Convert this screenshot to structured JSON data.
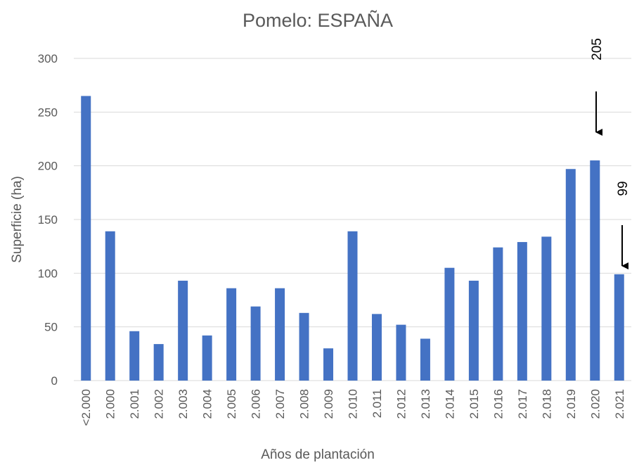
{
  "chart_data": {
    "type": "bar",
    "title": "Pomelo: ESPAÑA",
    "x_label": "Años de plantación",
    "y_label": "Superficie (ha)",
    "categories": [
      "<2.000",
      "2.000",
      "2.001",
      "2.002",
      "2.003",
      "2.004",
      "2.005",
      "2.006",
      "2.007",
      "2.008",
      "2.009",
      "2.010",
      "2.011",
      "2.012",
      "2.013",
      "2.014",
      "2.015",
      "2.016",
      "2.017",
      "2.018",
      "2.019",
      "2.020",
      "2.021"
    ],
    "values": [
      265,
      139,
      46,
      34,
      93,
      42,
      86,
      69,
      86,
      63,
      30,
      139,
      62,
      52,
      39,
      105,
      93,
      124,
      129,
      134,
      197,
      205,
      99
    ],
    "color": "#4472c4",
    "ylim": [
      0,
      300
    ],
    "yticks": [
      0,
      50,
      100,
      150,
      200,
      250,
      300
    ],
    "grid": true,
    "annotations": [
      "205",
      "99"
    ]
  }
}
